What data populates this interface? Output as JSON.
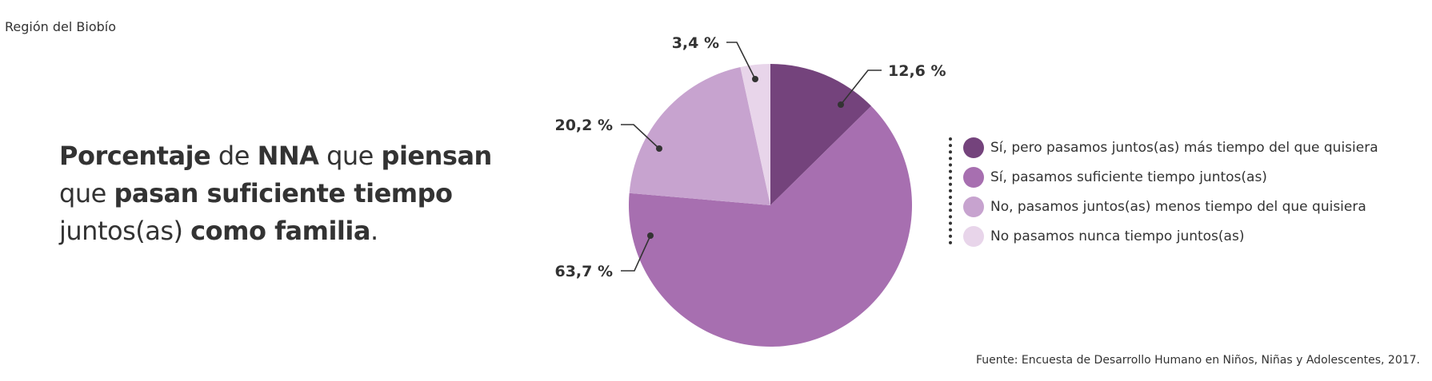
{
  "region": "Región del Biobío",
  "title_parts": [
    {
      "text": "Porcentaje",
      "bold": true
    },
    {
      "text": " de ",
      "bold": false
    },
    {
      "text": "NNA",
      "bold": true
    },
    {
      "text": " que ",
      "bold": false
    },
    {
      "text": "piensan",
      "bold": true
    },
    {
      "br": true
    },
    {
      "text": "que ",
      "bold": false
    },
    {
      "text": "pasan suficiente tiempo",
      "bold": true
    },
    {
      "br": true
    },
    {
      "text": "juntos(as) ",
      "bold": false
    },
    {
      "text": "como familia",
      "bold": true
    },
    {
      "text": ".",
      "bold": false
    }
  ],
  "source": "Fuente: Encuesta de Desarrollo Humano en Niños, Niñas y Adolescentes, 2017.",
  "chart_data": {
    "type": "pie",
    "start": "top",
    "direction": "clockwise",
    "slices": [
      {
        "label": "Sí, pero pasamos juntos(as) más tiempo del que quisiera",
        "value": 12.6,
        "display": "12,6 %",
        "color": "#74437c"
      },
      {
        "label": "Sí, pasamos suficiente tiempo juntos(as)",
        "value": 63.7,
        "display": "63,7 %",
        "color": "#a76fb0"
      },
      {
        "label": "No, pasamos juntos(as) menos tiempo del que quisiera",
        "value": 20.2,
        "display": "20,2 %",
        "color": "#c7a3cf"
      },
      {
        "label": "No pasamos nunca tiempo juntos(as)",
        "value": 3.4,
        "display": "3,4 %",
        "color": "#e8d5ea"
      }
    ],
    "legend_placement": "right"
  }
}
